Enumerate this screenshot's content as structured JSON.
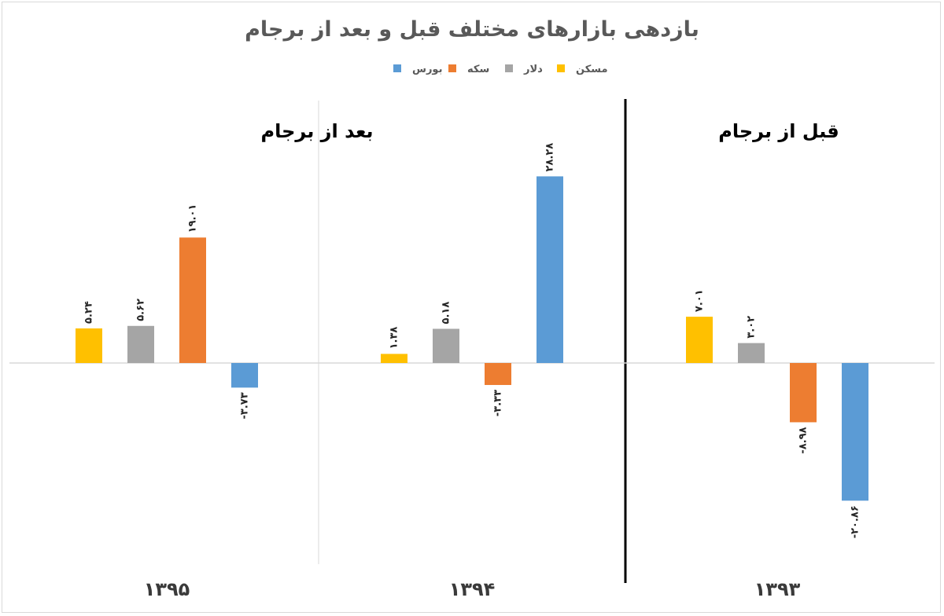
{
  "chart_data": {
    "type": "bar",
    "title": "بازدهی بازارهای مختلف قبل و بعد از برجام",
    "categories": [
      "۱۳۹۳",
      "۱۳۹۴",
      "۱۳۹۵"
    ],
    "series": [
      {
        "name": "مسکن",
        "color": "#ffc000",
        "values": [
          7.01,
          1.38,
          5.24
        ],
        "labels": [
          "۷.۰۱",
          "۱.۳۸",
          "۵.۲۴"
        ]
      },
      {
        "name": "دلار",
        "color": "#a5a5a5",
        "values": [
          3.02,
          5.18,
          5.62
        ],
        "labels": [
          "۳.۰۲",
          "۵.۱۸",
          "۵.۶۲"
        ]
      },
      {
        "name": "سکه",
        "color": "#ed7d31",
        "values": [
          -8.98,
          -3.33,
          19.01
        ],
        "labels": [
          "-۸.۹۸",
          "-۳.۳۳",
          "۱۹.۰۱"
        ]
      },
      {
        "name": "بورس",
        "color": "#5b9bd5",
        "values": [
          -20.86,
          28.28,
          -3.73
        ],
        "labels": [
          "-۲۰.۸۶",
          "۲۸.۲۸",
          "-۳.۷۳"
        ]
      }
    ],
    "annotations": {
      "before": "قبل از برجام",
      "after": "بعد از برجام"
    },
    "ylim": [
      -30,
      40
    ],
    "grid": false,
    "legend": "top-center"
  }
}
